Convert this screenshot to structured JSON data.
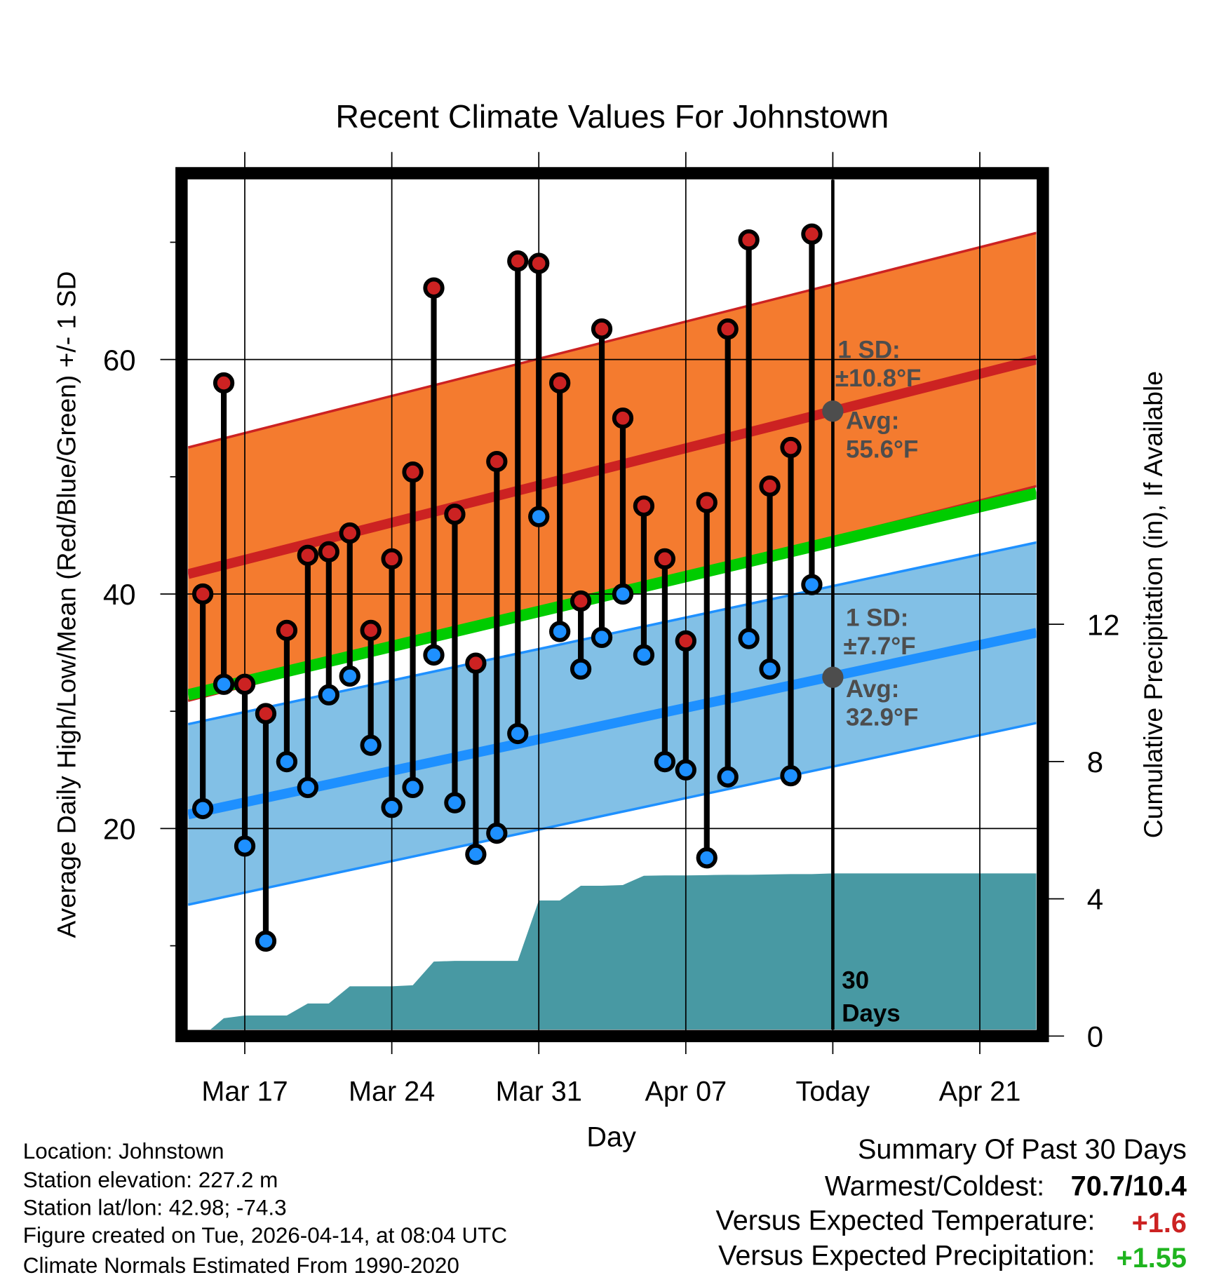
{
  "chart_data": {
    "type": "line",
    "title": "Recent Climate Values For Johnstown",
    "xlabel": "Day",
    "ylabel": "Average Daily High/Low/Mean (Red/Blue/Green) +/- 1 SD",
    "y2label": "Cumulative Precipitation (in), If Available",
    "ylim": [
      2.8,
      74.8
    ],
    "y2lim": [
      0,
      17.1
    ],
    "xlim_days_after_mar14": [
      0.3,
      40.7
    ],
    "yticks": [
      "20",
      "40",
      "60"
    ],
    "y2ticks": [
      "0",
      "4",
      "8",
      "12"
    ],
    "xticks": [
      {
        "day": 3,
        "label": "Mar 17"
      },
      {
        "day": 10,
        "label": "Mar 24"
      },
      {
        "day": 17,
        "label": "Mar 31"
      },
      {
        "day": 24,
        "label": "Apr 07"
      },
      {
        "day": 31,
        "label": "Today"
      },
      {
        "day": 38,
        "label": "Apr 21"
      }
    ],
    "dates": [
      "Mar 15",
      "Mar 16",
      "Mar 17",
      "Mar 18",
      "Mar 19",
      "Mar 20",
      "Mar 21",
      "Mar 22",
      "Mar 23",
      "Mar 24",
      "Mar 25",
      "Mar 26",
      "Mar 27",
      "Mar 28",
      "Mar 29",
      "Mar 30",
      "Mar 31",
      "Apr 01",
      "Apr 02",
      "Apr 03",
      "Apr 04",
      "Apr 05",
      "Apr 06",
      "Apr 07",
      "Apr 08",
      "Apr 09",
      "Apr 10",
      "Apr 11",
      "Apr 12",
      "Apr 13"
    ],
    "highs": [
      40.0,
      58.0,
      32.3,
      29.8,
      36.9,
      43.3,
      43.6,
      45.2,
      36.9,
      43.0,
      50.4,
      66.1,
      46.8,
      34.1,
      51.3,
      68.4,
      68.2,
      58.0,
      39.4,
      62.6,
      55.0,
      47.5,
      43.0,
      36.0,
      47.8,
      62.6,
      70.2,
      49.2,
      52.5,
      70.7
    ],
    "lows": [
      21.7,
      32.3,
      18.5,
      10.4,
      25.7,
      23.5,
      31.4,
      33.0,
      27.1,
      21.8,
      23.5,
      34.8,
      22.2,
      17.8,
      19.6,
      28.1,
      46.6,
      36.8,
      33.6,
      36.3,
      40.0,
      34.8,
      25.7,
      25.0,
      17.5,
      24.4,
      36.2,
      33.6,
      24.5,
      40.8
    ],
    "precip_cumulative": [
      0,
      0.52,
      0.6,
      0.6,
      0.6,
      0.95,
      0.95,
      1.45,
      1.45,
      1.45,
      1.48,
      2.17,
      2.19,
      2.19,
      2.19,
      2.19,
      3.95,
      3.95,
      4.38,
      4.38,
      4.4,
      4.67,
      4.68,
      4.68,
      4.69,
      4.7,
      4.7,
      4.71,
      4.72,
      4.72,
      4.74
    ],
    "normals": {
      "high_mean_start": 41.7,
      "high_mean_end": 60.0,
      "high_sd": 10.8,
      "low_mean_start": 21.2,
      "low_mean_end": 36.7,
      "low_sd": 7.7,
      "mean_start": 31.4,
      "mean_end": 48.6
    },
    "colors": {
      "high": "#cc2222",
      "low": "#1e90ff",
      "mean": "#00cc00",
      "high_band": "#f47b2f",
      "low_band": "#82c0e6",
      "precip": "#4899a3",
      "ann": "#4d4d4d"
    },
    "annotations": {
      "high_sd_label": "1 SD:",
      "high_sd_value": "±10.8°F",
      "high_avg_label": "Avg:",
      "high_avg_value": "55.6°F",
      "low_sd_label": "1 SD:",
      "low_sd_value": "±7.7°F",
      "low_avg_label": "Avg:",
      "low_avg_value": "32.9°F",
      "days_number": "30",
      "days_label": "Days"
    },
    "today_high_avg": 55.6,
    "today_low_avg": 32.9
  },
  "footer": {
    "location": "Location: Johnstown",
    "elevation": "Station elevation: 227.2 m",
    "latlon": "Station lat/lon: 42.98; -74.3",
    "created": "Figure created on Tue, 2026-04-14, at 08:04 UTC",
    "normals": "Climate Normals Estimated From 1990-2020"
  },
  "summary": {
    "title": "Summary Of Past 30 Days",
    "warmest_label": "Warmest/Coldest:",
    "warmest_value": "70.7/10.4",
    "temp_label": "Versus Expected Temperature:",
    "temp_value": "+1.6",
    "precip_label": "Versus Expected Precipitation:",
    "precip_value": "+1.55"
  }
}
